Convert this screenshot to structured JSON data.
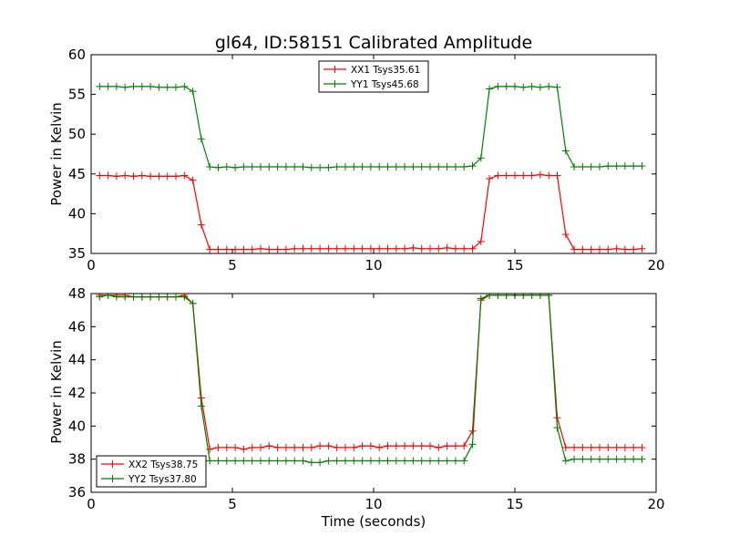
{
  "figure_title": "gl64, ID:58151 Calibrated Amplitude",
  "x_axis_label": "Time (seconds)",
  "chart_data": [
    {
      "type": "line",
      "ylabel": "Power in Kelvin",
      "xlim": [
        0,
        20
      ],
      "ylim": [
        35,
        60
      ],
      "xticks": [
        "0",
        "5",
        "10",
        "15",
        "20"
      ],
      "yticks": [
        "35",
        "40",
        "45",
        "50",
        "55",
        "60"
      ],
      "grid": false,
      "legend_position": "top-center",
      "x": [
        0.3,
        0.6,
        0.9,
        1.2,
        1.5,
        1.8,
        2.1,
        2.4,
        2.7,
        3.0,
        3.3,
        3.6,
        3.9,
        4.2,
        4.5,
        4.8,
        5.1,
        5.4,
        5.7,
        6.0,
        6.3,
        6.6,
        6.9,
        7.2,
        7.5,
        7.8,
        8.1,
        8.4,
        8.7,
        9.0,
        9.3,
        9.6,
        9.9,
        10.2,
        10.5,
        10.8,
        11.1,
        11.4,
        11.7,
        12.0,
        12.3,
        12.6,
        12.9,
        13.2,
        13.5,
        13.8,
        14.1,
        14.4,
        14.7,
        15.0,
        15.3,
        15.6,
        15.9,
        16.2,
        16.5,
        16.8,
        17.1,
        17.4,
        17.7,
        18.0,
        18.3,
        18.6,
        18.9,
        19.2,
        19.5
      ],
      "series": [
        {
          "name": "XX1 Tsys35.61",
          "color": "#ff0000",
          "values": [
            44.8,
            44.8,
            44.7,
            44.8,
            44.7,
            44.8,
            44.7,
            44.7,
            44.7,
            44.7,
            44.8,
            44.2,
            38.6,
            35.5,
            35.5,
            35.5,
            35.5,
            35.5,
            35.5,
            35.6,
            35.5,
            35.5,
            35.5,
            35.6,
            35.6,
            35.6,
            35.6,
            35.6,
            35.6,
            35.6,
            35.6,
            35.6,
            35.6,
            35.6,
            35.6,
            35.6,
            35.6,
            35.7,
            35.6,
            35.6,
            35.6,
            35.7,
            35.6,
            35.6,
            35.6,
            36.5,
            44.4,
            44.8,
            44.8,
            44.8,
            44.8,
            44.8,
            44.9,
            44.8,
            44.8,
            37.4,
            35.5,
            35.5,
            35.5,
            35.5,
            35.5,
            35.6,
            35.5,
            35.5,
            35.6
          ]
        },
        {
          "name": "YY1 Tsys45.68",
          "color": "#008000",
          "values": [
            56.0,
            56.0,
            56.0,
            55.9,
            56.0,
            56.0,
            56.0,
            55.9,
            55.9,
            55.9,
            56.0,
            55.4,
            49.4,
            45.9,
            45.8,
            45.9,
            45.8,
            45.9,
            45.9,
            45.9,
            45.9,
            45.9,
            45.9,
            45.9,
            45.9,
            45.8,
            45.8,
            45.8,
            45.9,
            45.9,
            45.9,
            45.9,
            45.9,
            45.9,
            45.9,
            45.9,
            45.9,
            45.9,
            45.9,
            45.9,
            45.9,
            45.9,
            45.9,
            45.9,
            46.0,
            47.0,
            55.7,
            56.0,
            56.0,
            56.0,
            55.9,
            56.0,
            55.9,
            56.0,
            55.9,
            47.9,
            45.9,
            45.9,
            45.9,
            45.9,
            46.0,
            46.0,
            46.0,
            46.0,
            46.0
          ]
        }
      ]
    },
    {
      "type": "line",
      "xlabel": "Time (seconds)",
      "ylabel": "Power in Kelvin",
      "xlim": [
        0,
        20
      ],
      "ylim": [
        36,
        48
      ],
      "xticks": [
        "0",
        "5",
        "10",
        "15",
        "20"
      ],
      "yticks": [
        "36",
        "38",
        "40",
        "42",
        "44",
        "46",
        "48"
      ],
      "grid": false,
      "legend_position": "lower-left",
      "x": [
        0.3,
        0.6,
        0.9,
        1.2,
        1.5,
        1.8,
        2.1,
        2.4,
        2.7,
        3.0,
        3.3,
        3.6,
        3.9,
        4.2,
        4.5,
        4.8,
        5.1,
        5.4,
        5.7,
        6.0,
        6.3,
        6.6,
        6.9,
        7.2,
        7.5,
        7.8,
        8.1,
        8.4,
        8.7,
        9.0,
        9.3,
        9.6,
        9.9,
        10.2,
        10.5,
        10.8,
        11.1,
        11.4,
        11.7,
        12.0,
        12.3,
        12.6,
        12.9,
        13.2,
        13.5,
        13.8,
        14.1,
        14.4,
        14.7,
        15.0,
        15.3,
        15.6,
        15.9,
        16.2,
        16.5,
        16.8,
        17.1,
        17.4,
        17.7,
        18.0,
        18.3,
        18.6,
        18.9,
        19.2,
        19.5
      ],
      "series": [
        {
          "name": "XX2 Tsys38.75",
          "color": "#ff0000",
          "values": [
            47.9,
            47.9,
            47.9,
            47.9,
            47.8,
            47.8,
            47.8,
            47.8,
            47.8,
            47.8,
            47.9,
            47.4,
            41.7,
            38.6,
            38.7,
            38.7,
            38.7,
            38.6,
            38.7,
            38.7,
            38.8,
            38.7,
            38.7,
            38.7,
            38.7,
            38.7,
            38.8,
            38.8,
            38.7,
            38.7,
            38.7,
            38.8,
            38.8,
            38.7,
            38.8,
            38.8,
            38.8,
            38.8,
            38.8,
            38.8,
            38.7,
            38.8,
            38.8,
            38.8,
            39.7,
            47.6,
            47.9,
            47.9,
            47.9,
            47.9,
            47.9,
            47.9,
            47.9,
            47.9,
            40.5,
            38.7,
            38.7,
            38.7,
            38.7,
            38.7,
            38.7,
            38.7,
            38.7,
            38.7,
            38.7
          ]
        },
        {
          "name": "YY2 Tsys37.80",
          "color": "#008000",
          "values": [
            47.8,
            47.9,
            47.8,
            47.8,
            47.8,
            47.8,
            47.8,
            47.8,
            47.8,
            47.8,
            47.8,
            47.4,
            41.2,
            37.9,
            37.9,
            37.9,
            37.9,
            37.9,
            37.9,
            37.9,
            37.9,
            37.9,
            37.9,
            37.9,
            37.9,
            37.8,
            37.8,
            37.9,
            37.9,
            37.9,
            37.9,
            37.9,
            37.9,
            37.9,
            37.9,
            37.9,
            37.9,
            37.9,
            37.9,
            37.9,
            37.9,
            37.9,
            37.9,
            37.9,
            38.9,
            47.7,
            47.9,
            47.9,
            47.9,
            47.9,
            47.9,
            47.9,
            47.9,
            47.9,
            39.9,
            37.9,
            38.0,
            38.0,
            38.0,
            38.0,
            38.0,
            38.0,
            38.0,
            38.0,
            38.0
          ]
        }
      ]
    }
  ]
}
